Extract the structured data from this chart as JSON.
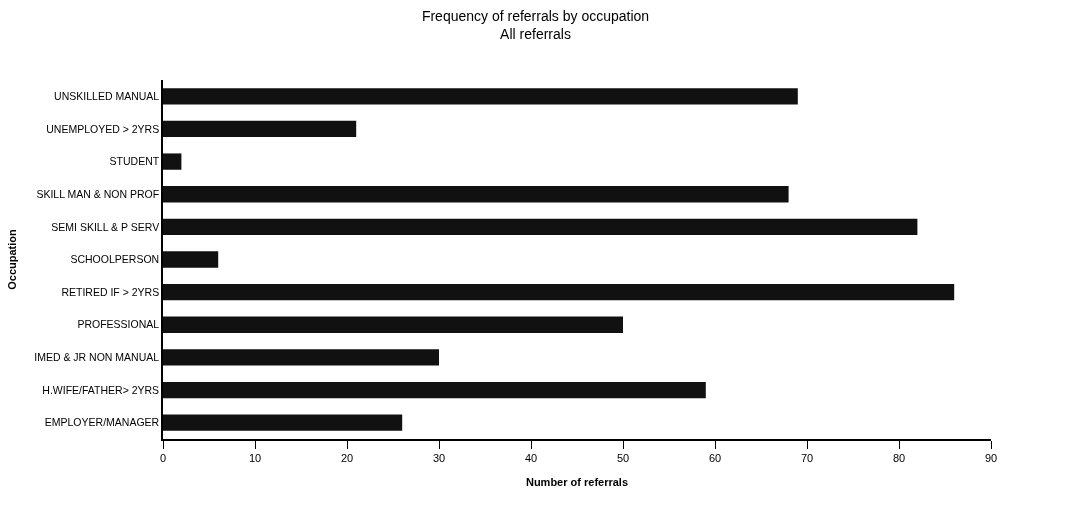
{
  "chart_data": {
    "type": "bar",
    "orientation": "horizontal",
    "title": "Frequency of referrals by occupation",
    "subtitle": "All referrals",
    "xlabel": "Number of referrals",
    "ylabel": "Occupation",
    "categories": [
      "UNSKILLED MANUAL",
      "UNEMPLOYED > 2YRS",
      "STUDENT",
      "SKILL MAN & NON PROF",
      "SEMI SKILL & P SERV",
      "SCHOOLPERSON",
      "RETIRED IF > 2YRS",
      "PROFESSIONAL",
      "IMED & JR NON MANUAL",
      "H.WIFE/FATHER> 2YRS",
      "EMPLOYER/MANAGER"
    ],
    "values": [
      69,
      21,
      2,
      68,
      82,
      6,
      86,
      50,
      30,
      59,
      26
    ],
    "color": "#111111",
    "xlim": [
      0,
      90
    ],
    "xticks": [
      0,
      10,
      20,
      30,
      40,
      50,
      60,
      70,
      80,
      90
    ]
  }
}
